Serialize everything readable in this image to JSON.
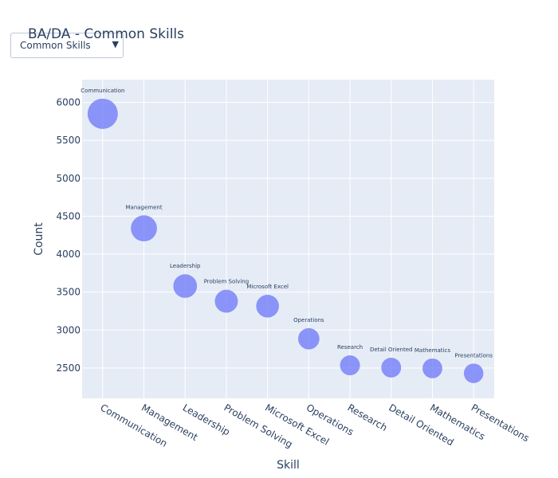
{
  "header": {
    "title": "BA/DA - Common Skills",
    "dropdown_value": "Common Skills",
    "dropdown_arrow_icon": "caret-down-icon"
  },
  "chart_data": {
    "type": "scatter",
    "mode": "markers+text",
    "marker_color": "#636efa",
    "plot_bgcolor": "#e5ecf6",
    "grid": true,
    "xlabel": "Skill",
    "ylabel": "Count",
    "categories": [
      "Communication",
      "Management",
      "Leadership",
      "Problem Solving",
      "Microsoft Excel",
      "Operations",
      "Research",
      "Detail Oriented",
      "Mathematics",
      "Presentations"
    ],
    "values": [
      5850,
      4340,
      3580,
      3380,
      3315,
      2885,
      2535,
      2505,
      2495,
      2430
    ],
    "ylim": [
      2100,
      6300
    ],
    "yticks": [
      2500,
      3000,
      3500,
      4000,
      4500,
      5000,
      5500,
      6000
    ]
  }
}
